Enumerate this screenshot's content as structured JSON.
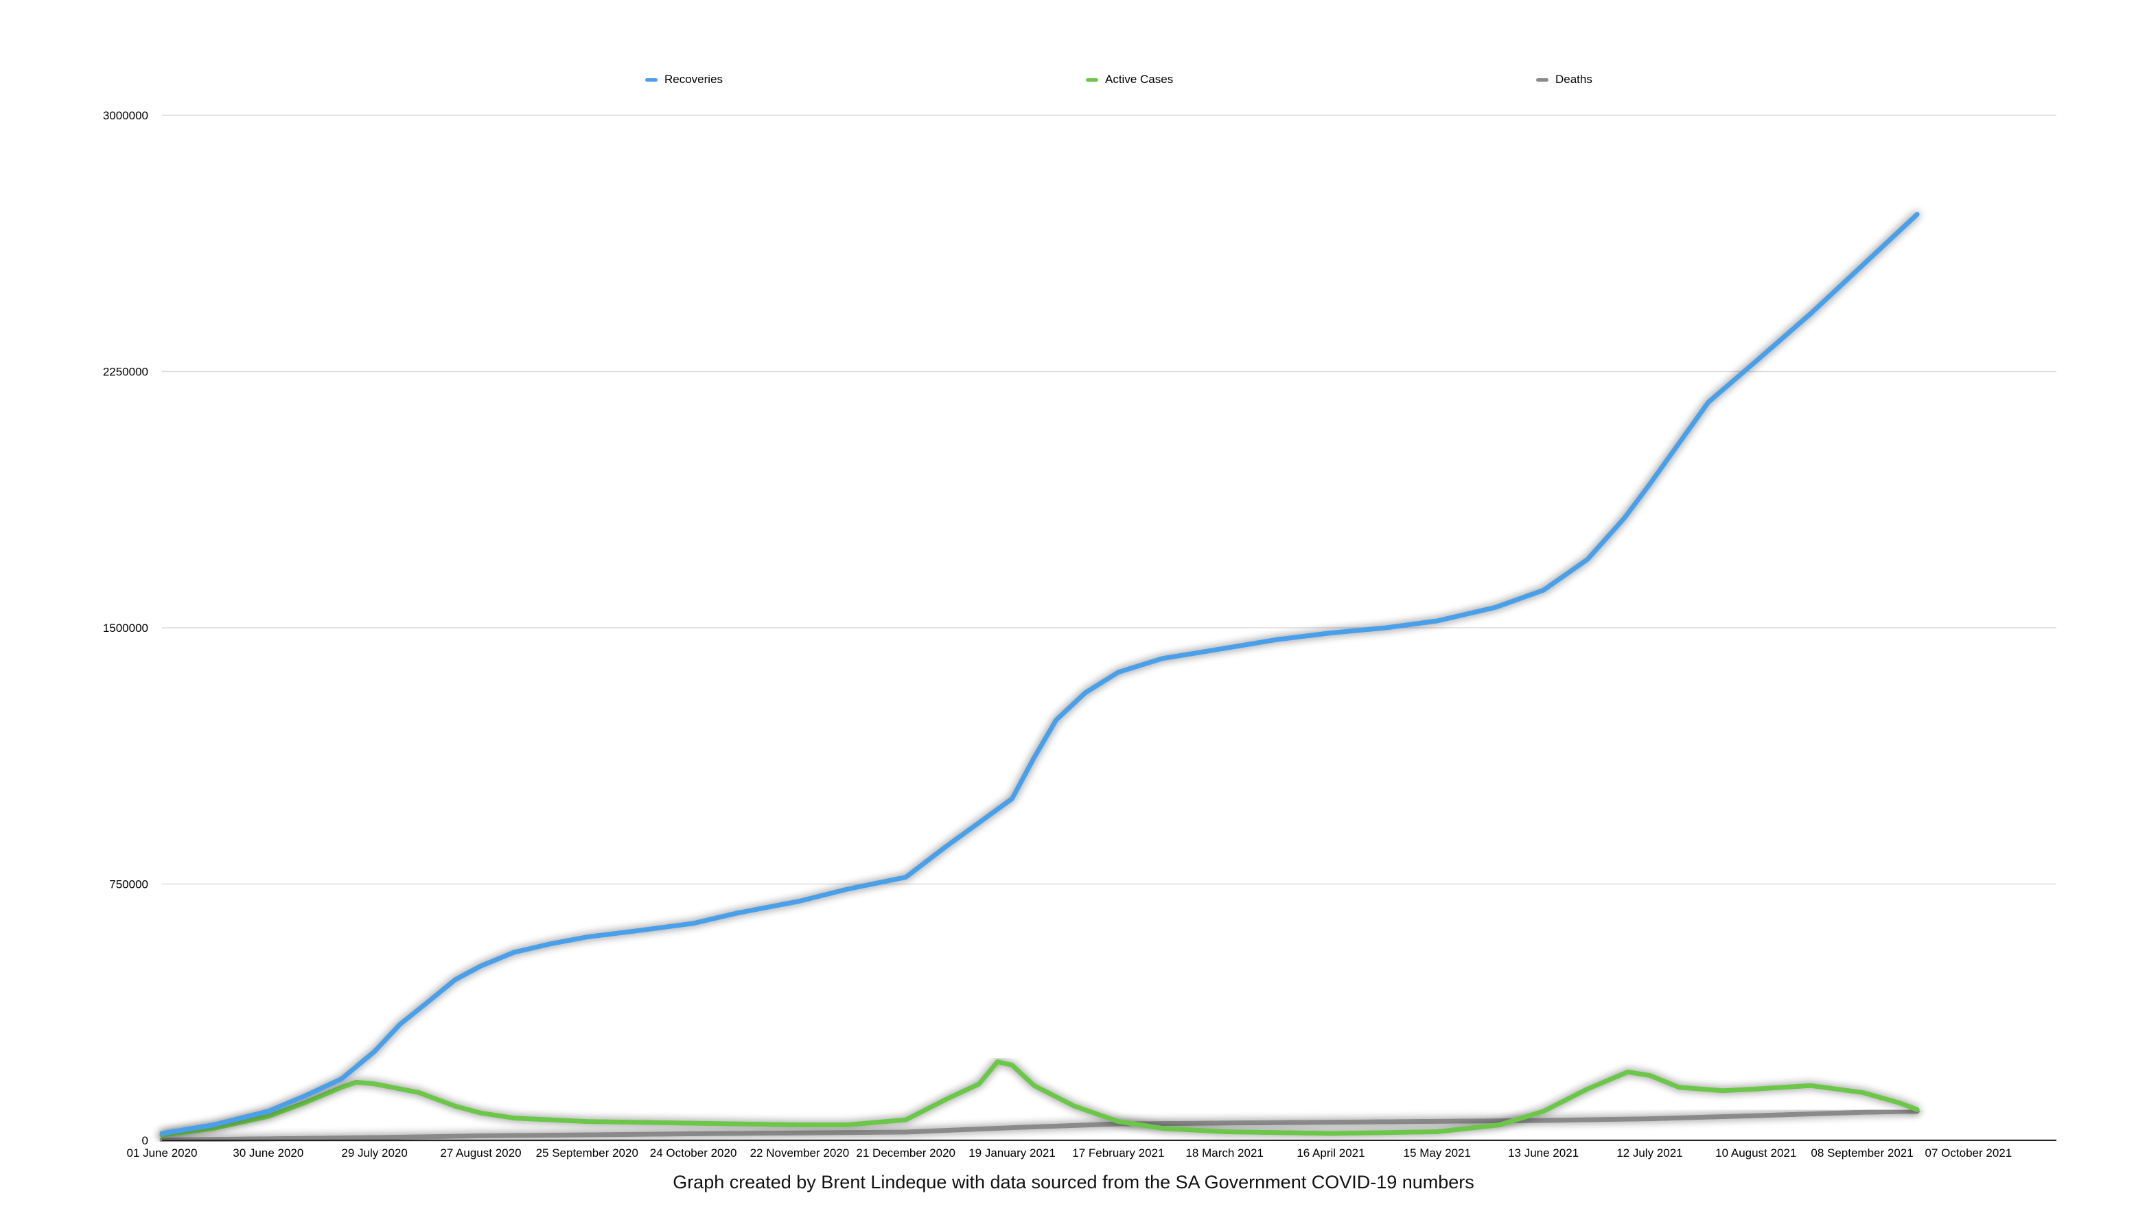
{
  "caption": "Graph created by Brent Lindeque with data sourced from the SA Government COVID-19 numbers",
  "legend": [
    {
      "name": "Recoveries",
      "color": "#4a9fe8"
    },
    {
      "name": "Active Cases",
      "color": "#6cc64a"
    },
    {
      "name": "Deaths",
      "color": "#8a8a8a"
    }
  ],
  "chart_data": {
    "type": "line",
    "title": "",
    "xlabel": "",
    "ylabel": "",
    "ylim": [
      0,
      3000000
    ],
    "yticks": [
      0,
      750000,
      1500000,
      2250000,
      3000000
    ],
    "ytick_labels": [
      "0",
      "750000",
      "1500000",
      "2250000",
      "3000000"
    ],
    "xlim": [
      "2020-06-01",
      "2021-10-31"
    ],
    "xticks": [
      "2020-06-01",
      "2020-06-30",
      "2020-07-29",
      "2020-08-27",
      "2020-09-25",
      "2020-10-24",
      "2020-11-22",
      "2020-12-21",
      "2021-01-19",
      "2021-02-17",
      "2021-03-18",
      "2021-04-16",
      "2021-05-15",
      "2021-06-13",
      "2021-07-12",
      "2021-08-10",
      "2021-09-08",
      "2021-10-07"
    ],
    "xtick_labels": [
      "01 June 2020",
      "30 June 2020",
      "29 July 2020",
      "27 August 2020",
      "25 September 2020",
      "24 October 2020",
      "22 November 2020",
      "21 December 2020",
      "19 January 2021",
      "17 February 2021",
      "18 March 2021",
      "16 April 2021",
      "15 May 2021",
      "13 June 2021",
      "12 July 2021",
      "10 August 2021",
      "08 September 2021",
      "07 October 2021"
    ],
    "grid": "horizontal",
    "legend_position": "top",
    "series": [
      {
        "name": "Recoveries",
        "color": "#4a9fe8",
        "points": [
          [
            "2020-06-01",
            20000
          ],
          [
            "2020-06-15",
            45000
          ],
          [
            "2020-06-30",
            85000
          ],
          [
            "2020-07-10",
            130000
          ],
          [
            "2020-07-20",
            180000
          ],
          [
            "2020-07-29",
            260000
          ],
          [
            "2020-08-05",
            340000
          ],
          [
            "2020-08-12",
            400000
          ],
          [
            "2020-08-20",
            470000
          ],
          [
            "2020-08-27",
            510000
          ],
          [
            "2020-09-05",
            550000
          ],
          [
            "2020-09-15",
            575000
          ],
          [
            "2020-09-25",
            595000
          ],
          [
            "2020-10-10",
            615000
          ],
          [
            "2020-10-24",
            635000
          ],
          [
            "2020-11-05",
            665000
          ],
          [
            "2020-11-22",
            700000
          ],
          [
            "2020-12-05",
            735000
          ],
          [
            "2020-12-21",
            770000
          ],
          [
            "2021-01-01",
            860000
          ],
          [
            "2021-01-10",
            930000
          ],
          [
            "2021-01-19",
            1000000
          ],
          [
            "2021-01-25",
            1120000
          ],
          [
            "2021-01-31",
            1230000
          ],
          [
            "2021-02-08",
            1310000
          ],
          [
            "2021-02-17",
            1370000
          ],
          [
            "2021-03-01",
            1410000
          ],
          [
            "2021-03-18",
            1440000
          ],
          [
            "2021-04-01",
            1465000
          ],
          [
            "2021-04-16",
            1485000
          ],
          [
            "2021-05-01",
            1500000
          ],
          [
            "2021-05-15",
            1520000
          ],
          [
            "2021-05-31",
            1560000
          ],
          [
            "2021-06-13",
            1610000
          ],
          [
            "2021-06-25",
            1700000
          ],
          [
            "2021-07-05",
            1820000
          ],
          [
            "2021-07-12",
            1920000
          ],
          [
            "2021-07-20",
            2040000
          ],
          [
            "2021-07-28",
            2160000
          ],
          [
            "2021-08-10",
            2280000
          ],
          [
            "2021-08-25",
            2420000
          ],
          [
            "2021-09-08",
            2560000
          ],
          [
            "2021-09-18",
            2660000
          ],
          [
            "2021-09-23",
            2710000
          ]
        ]
      },
      {
        "name": "Active Cases",
        "color": "#6cc64a",
        "points": [
          [
            "2020-06-01",
            15000
          ],
          [
            "2020-06-15",
            35000
          ],
          [
            "2020-06-30",
            70000
          ],
          [
            "2020-07-10",
            110000
          ],
          [
            "2020-07-20",
            155000
          ],
          [
            "2020-07-24",
            170000
          ],
          [
            "2020-07-29",
            165000
          ],
          [
            "2020-08-10",
            140000
          ],
          [
            "2020-08-20",
            100000
          ],
          [
            "2020-08-27",
            80000
          ],
          [
            "2020-09-05",
            65000
          ],
          [
            "2020-09-25",
            55000
          ],
          [
            "2020-10-24",
            50000
          ],
          [
            "2020-11-22",
            45000
          ],
          [
            "2020-12-05",
            45000
          ],
          [
            "2020-12-21",
            60000
          ],
          [
            "2021-01-01",
            120000
          ],
          [
            "2021-01-10",
            165000
          ],
          [
            "2021-01-15",
            230000
          ],
          [
            "2021-01-19",
            220000
          ],
          [
            "2021-01-25",
            160000
          ],
          [
            "2021-02-05",
            100000
          ],
          [
            "2021-02-17",
            55000
          ],
          [
            "2021-03-01",
            35000
          ],
          [
            "2021-03-18",
            25000
          ],
          [
            "2021-04-16",
            20000
          ],
          [
            "2021-05-15",
            25000
          ],
          [
            "2021-06-01",
            45000
          ],
          [
            "2021-06-13",
            85000
          ],
          [
            "2021-06-25",
            150000
          ],
          [
            "2021-07-06",
            200000
          ],
          [
            "2021-07-12",
            190000
          ],
          [
            "2021-07-20",
            155000
          ],
          [
            "2021-08-01",
            145000
          ],
          [
            "2021-08-10",
            150000
          ],
          [
            "2021-08-25",
            160000
          ],
          [
            "2021-09-08",
            140000
          ],
          [
            "2021-09-18",
            110000
          ],
          [
            "2021-09-23",
            90000
          ]
        ]
      },
      {
        "name": "Deaths",
        "color": "#8a8a8a",
        "points": [
          [
            "2020-06-01",
            1000
          ],
          [
            "2020-07-29",
            8000
          ],
          [
            "2020-08-27",
            13000
          ],
          [
            "2020-10-24",
            19000
          ],
          [
            "2020-12-21",
            24000
          ],
          [
            "2021-01-19",
            37000
          ],
          [
            "2021-02-17",
            48000
          ],
          [
            "2021-04-16",
            53000
          ],
          [
            "2021-06-13",
            58000
          ],
          [
            "2021-07-12",
            63000
          ],
          [
            "2021-08-10",
            72000
          ],
          [
            "2021-09-08",
            82000
          ],
          [
            "2021-09-23",
            85000
          ]
        ]
      }
    ]
  }
}
